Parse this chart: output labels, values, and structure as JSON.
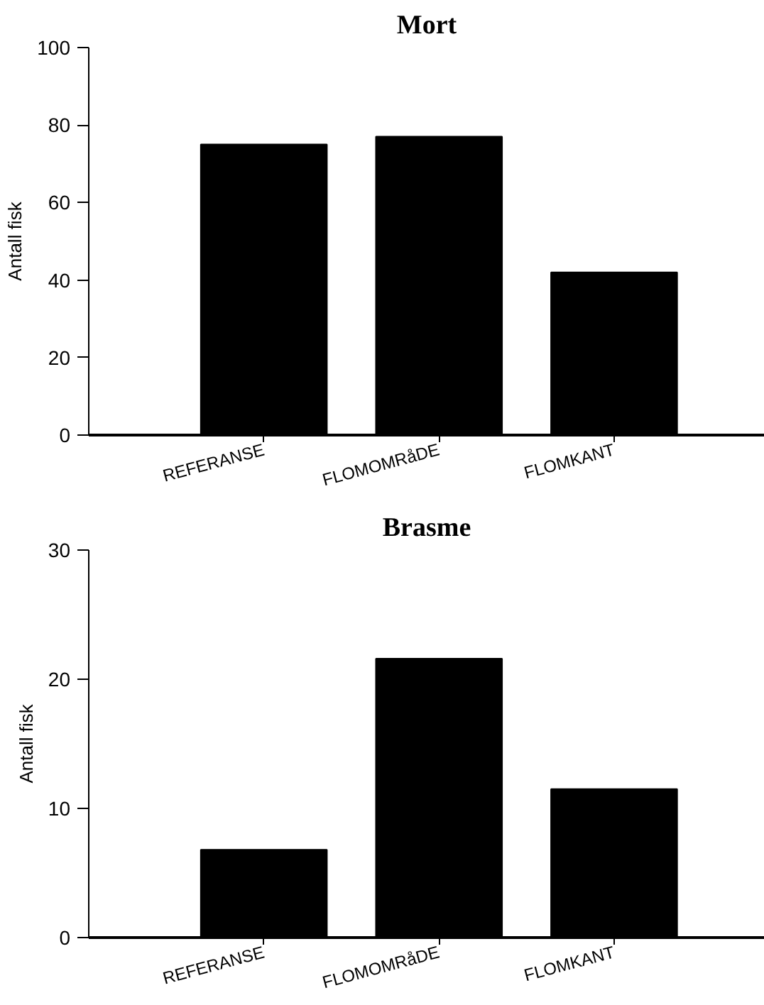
{
  "chart_data": [
    {
      "type": "bar",
      "title": "Mort",
      "ylabel": "Antall fisk",
      "categories": [
        "REFERANSE",
        "FLOMOMRåDE",
        "FLOMKANT"
      ],
      "values": [
        75,
        77,
        42
      ],
      "color": "#000000",
      "ylim": [
        0,
        100
      ],
      "yticks": [
        0,
        20,
        40,
        60,
        80,
        100
      ]
    },
    {
      "type": "bar",
      "title": "Brasme",
      "ylabel": "Antall fisk",
      "categories": [
        "REFERANSE",
        "FLOMOMRåDE",
        "FLOMKANT"
      ],
      "values": [
        6.8,
        21.6,
        11.5
      ],
      "color": "#000000",
      "ylim": [
        0,
        30
      ],
      "yticks": [
        0,
        10,
        20,
        30
      ]
    }
  ]
}
